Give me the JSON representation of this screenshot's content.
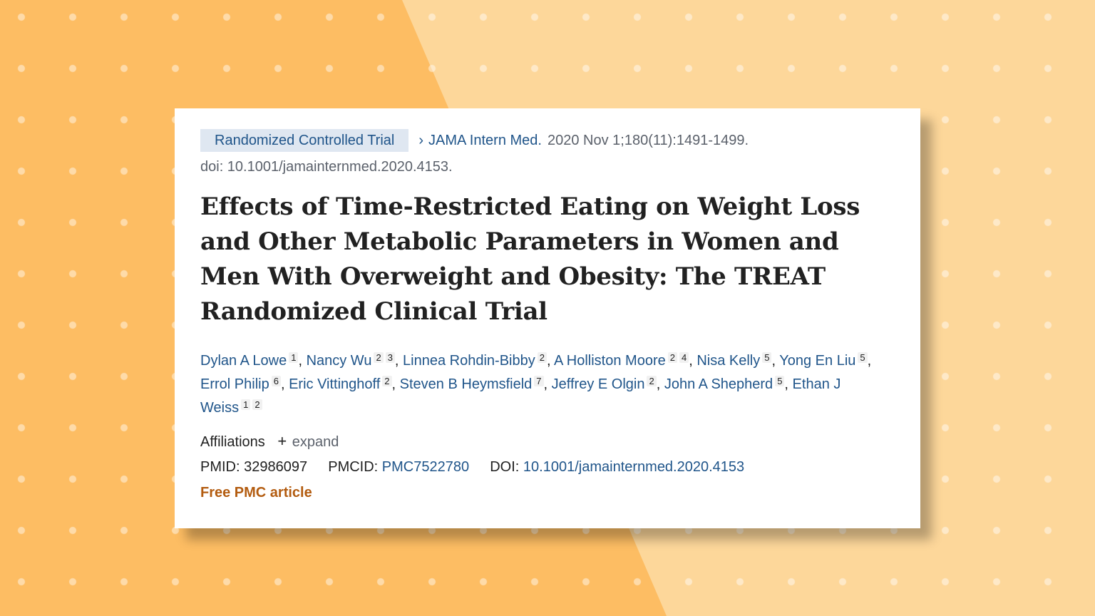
{
  "header": {
    "publication_type": "Randomized Controlled Trial",
    "chevron": "›",
    "journal": "JAMA Intern Med.",
    "citation": "2020 Nov 1;180(11):1491-1499.",
    "doi_line": "doi: 10.1001/jamainternmed.2020.4153."
  },
  "title": "Effects of Time-Restricted Eating on Weight Loss and Other Metabolic Parameters in Women and Men With Overweight and Obesity: The TREAT Randomized Clinical Trial",
  "authors": [
    {
      "name": "Dylan A Lowe",
      "affs": [
        "1"
      ]
    },
    {
      "name": "Nancy Wu",
      "affs": [
        "2",
        "3"
      ]
    },
    {
      "name": "Linnea Rohdin-Bibby",
      "affs": [
        "2"
      ]
    },
    {
      "name": "A Holliston Moore",
      "affs": [
        "2",
        "4"
      ]
    },
    {
      "name": "Nisa Kelly",
      "affs": [
        "5"
      ]
    },
    {
      "name": "Yong En Liu",
      "affs": [
        "5"
      ]
    },
    {
      "name": "Errol Philip",
      "affs": [
        "6"
      ]
    },
    {
      "name": "Eric Vittinghoff",
      "affs": [
        "2"
      ]
    },
    {
      "name": "Steven B Heymsfield",
      "affs": [
        "7"
      ]
    },
    {
      "name": "Jeffrey E Olgin",
      "affs": [
        "2"
      ]
    },
    {
      "name": "John A Shepherd",
      "affs": [
        "5"
      ]
    },
    {
      "name": "Ethan J Weiss",
      "affs": [
        "1",
        "2"
      ]
    }
  ],
  "affiliations": {
    "label": "Affiliations",
    "toggle_symbol": "+",
    "toggle_label": "expand"
  },
  "identifiers": {
    "pmid_label": "PMID:",
    "pmid": "32986097",
    "pmcid_label": "PMCID:",
    "pmcid": "PMC7522780",
    "doi_label": "DOI:",
    "doi": "10.1001/jamainternmed.2020.4153"
  },
  "free_article": "Free PMC article",
  "colors": {
    "link": "#20558a",
    "free_article": "#b35c10",
    "tag_bg": "#dfe7f1",
    "bg_light": "#fdd79a",
    "bg_dark": "#fdbd63"
  }
}
